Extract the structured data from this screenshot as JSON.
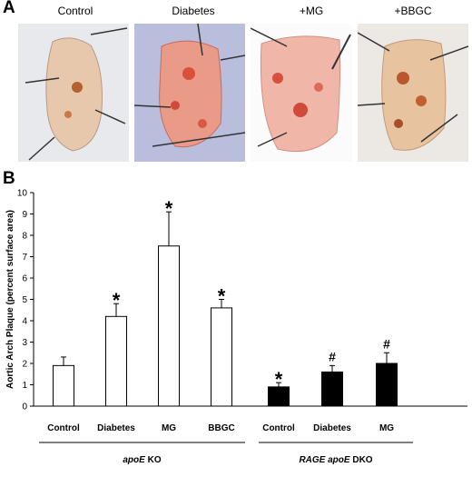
{
  "panel_a": {
    "letter": "A",
    "labels": [
      "Control",
      "Diabetes",
      "+MG",
      "+BBGC"
    ],
    "tissue_colors": [
      "#e6c3a6",
      "#e58a78",
      "#e9a596",
      "#d08a5a"
    ]
  },
  "panel_b": {
    "letter": "B"
  },
  "chart_data": {
    "type": "bar",
    "ylabel": "Aortic Arch Plaque (percent surface area)",
    "ylim": [
      0,
      10
    ],
    "yticks": [
      0,
      1,
      2,
      3,
      4,
      5,
      6,
      7,
      8,
      9,
      10
    ],
    "grid": false,
    "categories": [
      "Control",
      "Diabetes",
      "MG",
      "BBGC",
      "Control",
      "Diabetes",
      "MG"
    ],
    "values": [
      1.9,
      4.2,
      7.5,
      4.6,
      0.9,
      1.6,
      2.0
    ],
    "errors": [
      0.4,
      0.6,
      1.6,
      0.4,
      0.2,
      0.3,
      0.5
    ],
    "annotations": [
      "",
      "*",
      "*",
      "*",
      "*",
      "#",
      "#"
    ],
    "fills": [
      "#ffffff",
      "#ffffff",
      "#ffffff",
      "#ffffff",
      "#000000",
      "#000000",
      "#000000"
    ],
    "groups": [
      {
        "label_italic": "apoE",
        "label_rest": " KO",
        "indices": [
          0,
          1,
          2,
          3
        ]
      },
      {
        "label_italic": "RAGE apoE",
        "label_rest": " DKO",
        "indices": [
          4,
          5,
          6
        ]
      }
    ]
  }
}
